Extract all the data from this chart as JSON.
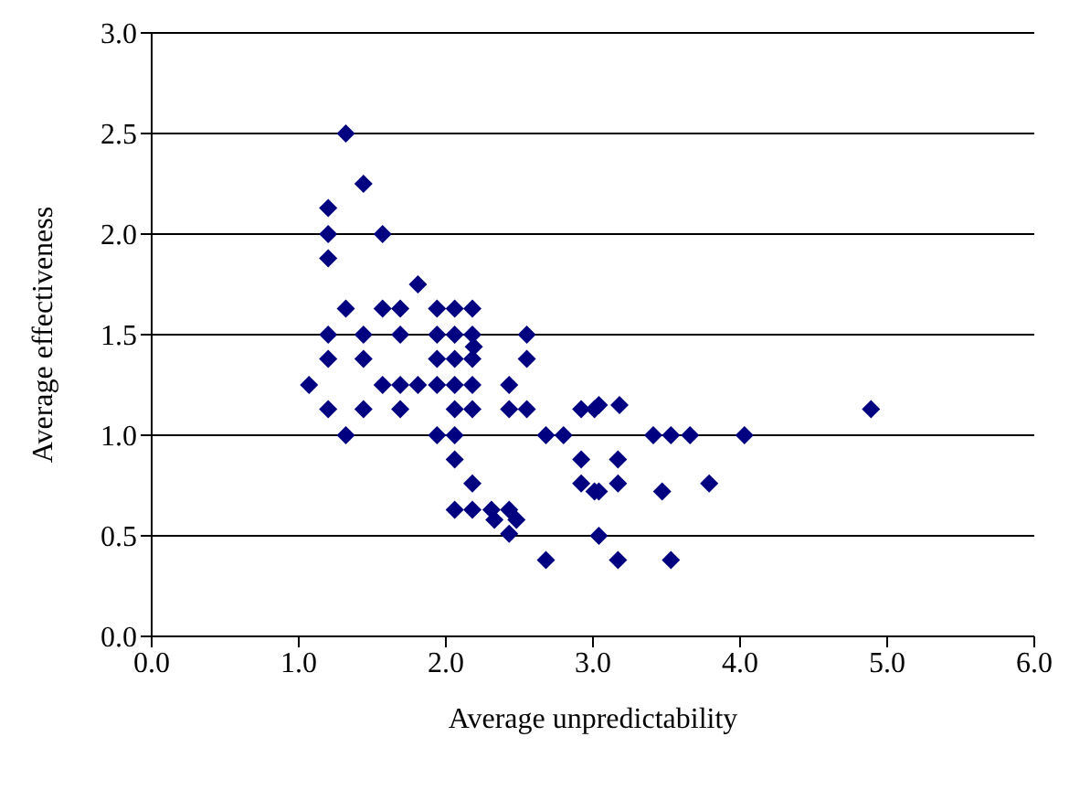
{
  "chart_data": {
    "type": "scatter",
    "xlabel": "Average unpredictability",
    "ylabel": "Average effectiveness",
    "x": [
      1.32,
      1.44,
      1.2,
      1.2,
      1.57,
      1.2,
      1.81,
      1.32,
      1.57,
      1.69,
      1.94,
      2.06,
      2.18,
      1.2,
      1.44,
      1.69,
      1.94,
      2.06,
      2.18,
      2.55,
      2.19,
      1.2,
      1.44,
      1.94,
      2.06,
      2.18,
      2.55,
      1.07,
      1.57,
      1.69,
      1.81,
      1.94,
      2.06,
      2.18,
      2.43,
      1.2,
      1.44,
      1.69,
      2.06,
      2.18,
      2.43,
      2.55,
      2.92,
      3.01,
      1.32,
      1.94,
      2.06,
      2.68,
      2.8,
      2.06,
      2.92,
      2.92,
      3.01,
      2.18,
      2.06,
      2.18,
      2.31,
      2.43,
      2.33,
      2.48,
      2.43,
      2.68,
      3.04,
      3.18,
      4.89,
      3.41,
      3.53,
      3.66,
      4.03,
      3.17,
      3.04,
      3.17,
      3.47,
      3.79,
      3.04,
      3.17,
      3.53
    ],
    "values": [
      2.5,
      2.25,
      2.13,
      2.0,
      2.0,
      1.88,
      1.75,
      1.63,
      1.63,
      1.63,
      1.63,
      1.63,
      1.63,
      1.5,
      1.5,
      1.5,
      1.5,
      1.5,
      1.5,
      1.5,
      1.44,
      1.38,
      1.38,
      1.38,
      1.38,
      1.38,
      1.38,
      1.25,
      1.25,
      1.25,
      1.25,
      1.25,
      1.25,
      1.25,
      1.25,
      1.13,
      1.13,
      1.13,
      1.13,
      1.13,
      1.13,
      1.13,
      1.13,
      1.13,
      1.0,
      1.0,
      1.0,
      1.0,
      1.0,
      0.88,
      0.88,
      0.76,
      0.72,
      0.76,
      0.63,
      0.63,
      0.63,
      0.63,
      0.58,
      0.58,
      0.51,
      0.38,
      1.15,
      1.15,
      1.13,
      1.0,
      1.0,
      1.0,
      1.0,
      0.88,
      0.72,
      0.76,
      0.72,
      0.76,
      0.5,
      0.38,
      0.38
    ],
    "color": "#000080",
    "marker": "diamond",
    "xlim": [
      0,
      6
    ],
    "xticks": [
      {
        "value": 0,
        "label": "0.0"
      },
      {
        "value": 1,
        "label": "1.0"
      },
      {
        "value": 2,
        "label": "2.0"
      },
      {
        "value": 3,
        "label": "3.0"
      },
      {
        "value": 4,
        "label": "4.0"
      },
      {
        "value": 5,
        "label": "5.0"
      },
      {
        "value": 6,
        "label": "6.0"
      }
    ],
    "ylim": [
      0,
      3
    ],
    "yticks": [
      {
        "value": 0,
        "label": "0.0"
      },
      {
        "value": 0.5,
        "label": "0.5"
      },
      {
        "value": 1,
        "label": "1.0"
      },
      {
        "value": 1.5,
        "label": "1.5"
      },
      {
        "value": 2,
        "label": "2.0"
      },
      {
        "value": 2.5,
        "label": "2.5"
      },
      {
        "value": 3,
        "label": "3.0"
      }
    ],
    "grid": "y"
  }
}
